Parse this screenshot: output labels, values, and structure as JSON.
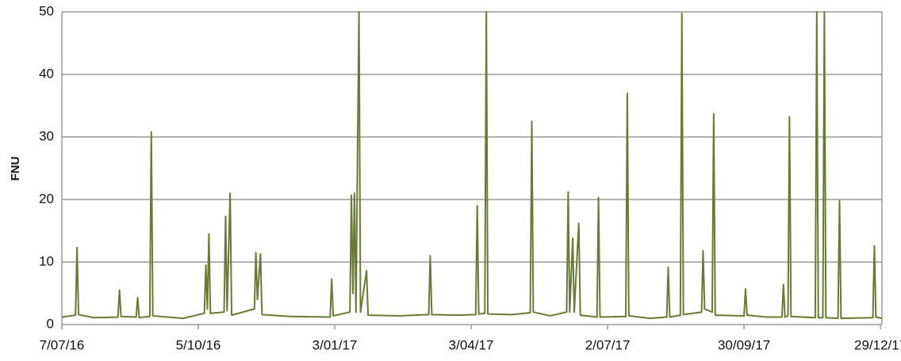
{
  "chart_data": {
    "type": "line",
    "y_label": "FNU",
    "x": [
      "2016-07-07",
      "2016-07-16",
      "2016-07-17",
      "2016-07-18",
      "2016-07-28",
      "2016-08-13",
      "2016-08-14",
      "2016-08-15",
      "2016-08-25",
      "2016-08-26",
      "2016-08-27",
      "2016-09-03",
      "2016-09-04",
      "2016-09-05",
      "2016-09-25",
      "2016-10-09",
      "2016-10-10",
      "2016-10-11",
      "2016-10-12",
      "2016-10-13",
      "2016-10-22",
      "2016-10-23",
      "2016-10-24",
      "2016-10-26",
      "2016-10-27",
      "2016-11-11",
      "2016-11-12",
      "2016-11-13",
      "2016-11-15",
      "2016-11-16",
      "2016-12-05",
      "2016-12-31",
      "2017-01-01",
      "2017-01-02",
      "2017-01-13",
      "2017-01-14",
      "2017-01-15",
      "2017-01-16",
      "2017-01-17",
      "2017-01-19",
      "2017-01-20",
      "2017-01-24",
      "2017-01-25",
      "2017-02-15",
      "2017-03-06",
      "2017-03-07",
      "2017-03-08",
      "2017-03-25",
      "2017-04-06",
      "2017-04-07",
      "2017-04-08",
      "2017-04-12",
      "2017-04-13",
      "2017-04-14",
      "2017-04-30",
      "2017-05-12",
      "2017-05-13",
      "2017-05-14",
      "2017-05-25",
      "2017-06-05",
      "2017-06-06",
      "2017-06-07",
      "2017-06-09",
      "2017-06-10",
      "2017-06-13",
      "2017-06-14",
      "2017-06-25",
      "2017-06-26",
      "2017-06-27",
      "2017-07-14",
      "2017-07-15",
      "2017-07-16",
      "2017-07-30",
      "2017-08-10",
      "2017-08-11",
      "2017-08-12",
      "2017-08-19",
      "2017-08-20",
      "2017-08-21",
      "2017-09-02",
      "2017-09-03",
      "2017-09-04",
      "2017-09-09",
      "2017-09-10",
      "2017-09-11",
      "2017-09-30",
      "2017-10-01",
      "2017-10-02",
      "2017-10-15",
      "2017-10-25",
      "2017-10-26",
      "2017-10-27",
      "2017-10-29",
      "2017-10-30",
      "2017-10-31",
      "2017-11-16",
      "2017-11-17",
      "2017-11-18",
      "2017-11-21",
      "2017-11-22",
      "2017-11-23",
      "2017-12-01",
      "2017-12-02",
      "2017-12-03",
      "2017-12-24",
      "2017-12-25",
      "2017-12-26",
      "2017-12-30"
    ],
    "series": [
      {
        "color": "#687a35",
        "values": [
          1.2,
          1.5,
          12.3,
          1.6,
          1.1,
          1.2,
          5.5,
          1.3,
          1.2,
          4.3,
          1.1,
          1.3,
          30.8,
          1.4,
          1.0,
          1.8,
          9.5,
          2.5,
          14.5,
          1.8,
          2.0,
          17.3,
          2.2,
          21,
          1.5,
          2.5,
          11.5,
          4,
          11.3,
          1.6,
          1.3,
          1.2,
          7.3,
          1.4,
          2.0,
          20.7,
          5,
          21,
          2,
          50,
          2,
          8.6,
          1.5,
          1.4,
          1.6,
          11,
          1.6,
          1.5,
          1.6,
          19,
          1.7,
          1.8,
          50,
          1.7,
          1.6,
          1.9,
          32.5,
          2,
          1.4,
          2.0,
          21.2,
          2,
          13.8,
          2,
          16.2,
          1.5,
          1.2,
          20.3,
          1.2,
          1.3,
          37,
          1.4,
          1.0,
          1.2,
          9.2,
          1.2,
          1.5,
          49.8,
          1.6,
          2.0,
          11.8,
          2.5,
          2.0,
          33.7,
          1.5,
          1.4,
          5.7,
          1.5,
          1.2,
          1.2,
          6.4,
          1.2,
          1.4,
          33.2,
          1.3,
          1.1,
          50,
          1.1,
          1.1,
          50,
          1.1,
          1.0,
          19.8,
          1.0,
          1.1,
          12.6,
          1.2,
          1.0
        ]
      }
    ],
    "xlim": [
      "2016-07-07",
      "2017-12-30"
    ],
    "xticks": [
      {
        "value": "2016-07-07",
        "label": "7/07/16"
      },
      {
        "value": "2016-10-05",
        "label": "5/10/16"
      },
      {
        "value": "2017-01-03",
        "label": "3/01/17"
      },
      {
        "value": "2017-04-03",
        "label": "3/04/17"
      },
      {
        "value": "2017-07-02",
        "label": "2/07/17"
      },
      {
        "value": "2017-09-30",
        "label": "30/09/17"
      },
      {
        "value": "2017-12-29",
        "label": "29/12/17"
      }
    ],
    "ylim": [
      0,
      50
    ],
    "yticks": [
      0,
      10,
      20,
      30,
      40,
      50
    ],
    "grid": true
  }
}
